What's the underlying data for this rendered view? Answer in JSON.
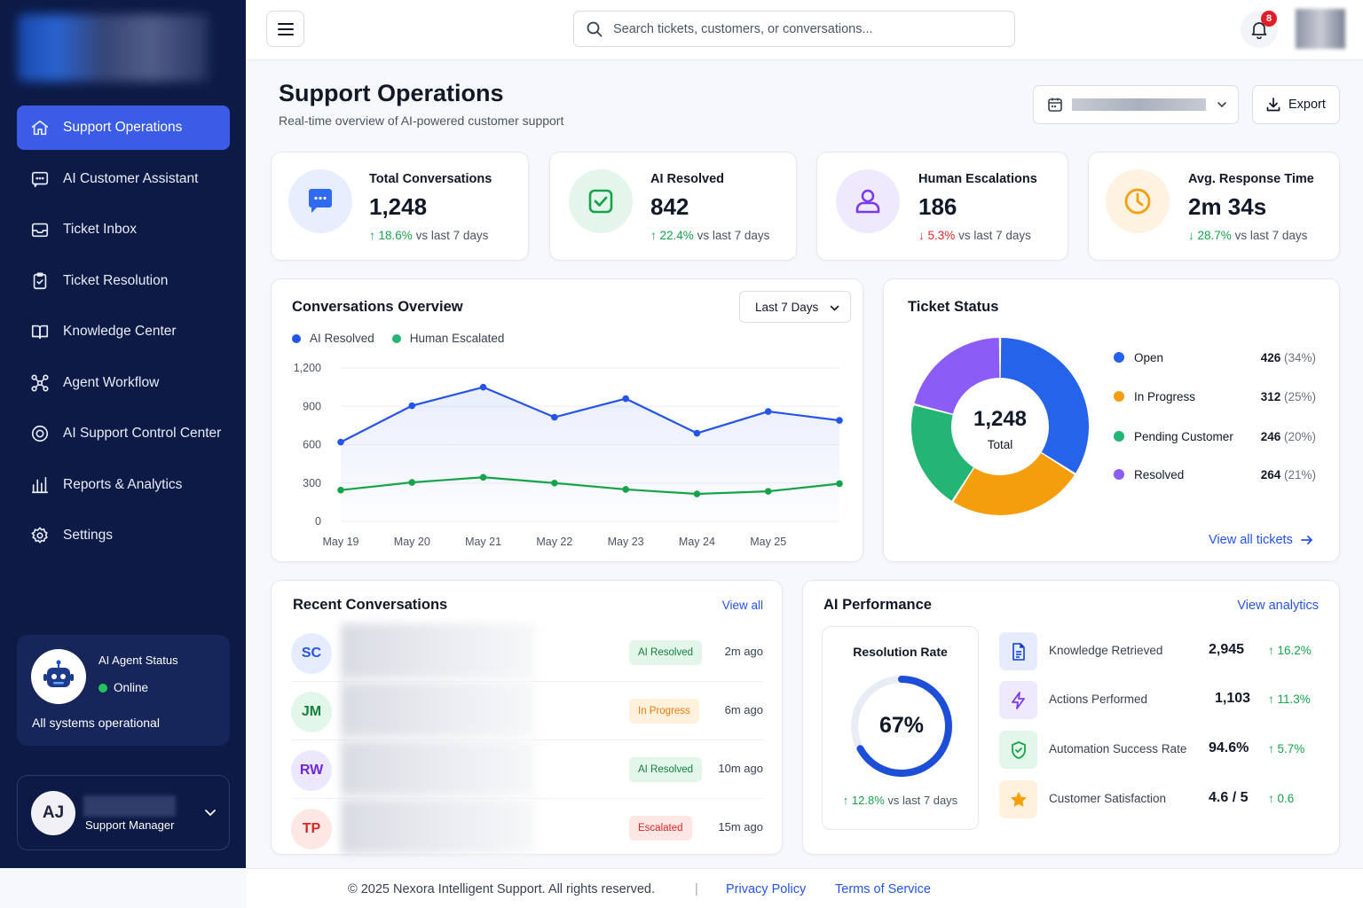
{
  "sidebar": {
    "items": [
      {
        "label": "Support Operations",
        "icon": "home-icon"
      },
      {
        "label": "AI Customer Assistant",
        "icon": "chat-icon"
      },
      {
        "label": "Ticket Inbox",
        "icon": "inbox-icon"
      },
      {
        "label": "Ticket Resolution",
        "icon": "clipboard-check-icon"
      },
      {
        "label": "Knowledge Center",
        "icon": "book-icon"
      },
      {
        "label": "Agent Workflow",
        "icon": "workflow-icon"
      },
      {
        "label": "AI Support Control Center",
        "icon": "target-icon"
      },
      {
        "label": "Reports & Analytics",
        "icon": "bar-chart-icon"
      },
      {
        "label": "Settings",
        "icon": "gear-icon"
      }
    ],
    "agent_status": {
      "title": "AI Agent Status",
      "state": "Online",
      "message": "All systems operational"
    },
    "user": {
      "initials": "AJ",
      "role": "Support Manager"
    }
  },
  "topbar": {
    "search_placeholder": "Search tickets, customers, or conversations...",
    "notification_count": "8"
  },
  "header": {
    "title": "Support Operations",
    "subtitle": "Real-time overview of AI-powered customer support",
    "export_label": "Export"
  },
  "stats": [
    {
      "label": "Total Conversations",
      "value": "1,248",
      "delta": "18.6%",
      "direction": "up",
      "suffix": "vs last 7 days",
      "color": "#2f6bf0"
    },
    {
      "label": "AI Resolved",
      "value": "842",
      "delta": "22.4%",
      "direction": "up",
      "suffix": "vs last 7 days",
      "color": "#16a34a"
    },
    {
      "label": "Human Escalations",
      "value": "186",
      "delta": "5.3%",
      "direction": "down",
      "suffix": "vs last 7 days",
      "color": "#7c3aed"
    },
    {
      "label": "Avg. Response Time",
      "value": "2m 34s",
      "delta": "28.7%",
      "direction": "down",
      "suffix": "vs last 7 days",
      "color": "#f59e0b"
    }
  ],
  "overview": {
    "title": "Conversations Overview",
    "range": "Last 7 Days",
    "chart_data": {
      "type": "line",
      "x": [
        "May 19",
        "May 20",
        "May 21",
        "May 22",
        "May 23",
        "May 24",
        "May 25",
        ""
      ],
      "y_ticks": [
        "0",
        "300",
        "600",
        "900",
        "1,200"
      ],
      "ylim": [
        0,
        1200
      ],
      "series": [
        {
          "name": "AI Resolved",
          "color": "#2554e8",
          "values": [
            620,
            905,
            1050,
            815,
            960,
            690,
            860,
            790
          ]
        },
        {
          "name": "Human Escalated",
          "color": "#16a34a",
          "values": [
            245,
            305,
            345,
            300,
            250,
            215,
            235,
            295
          ]
        }
      ],
      "legend": "top-left",
      "grid": true
    }
  },
  "ticket_status": {
    "title": "Ticket Status",
    "total": "1,248",
    "total_label": "Total",
    "link": "View all tickets",
    "chart_data": {
      "type": "pie",
      "slices": [
        {
          "label": "Open",
          "count": "426",
          "pct": "(34%)",
          "value": 34,
          "color": "#2563eb"
        },
        {
          "label": "In Progress",
          "count": "312",
          "pct": "(25%)",
          "value": 25,
          "color": "#f59e0b"
        },
        {
          "label": "Pending Customer",
          "count": "246",
          "pct": "(20%)",
          "value": 20,
          "color": "#22b573"
        },
        {
          "label": "Resolved",
          "count": "264",
          "pct": "(21%)",
          "value": 21,
          "color": "#8b5cf6"
        }
      ]
    }
  },
  "recent": {
    "title": "Recent Conversations",
    "link": "View all",
    "rows": [
      {
        "initials": "SC",
        "status": "AI Resolved",
        "time": "2m ago",
        "av_bg": "#e6ecfd",
        "av_fg": "#2554e8",
        "st_bg": "#e3f6ea",
        "st_fg": "#15803d"
      },
      {
        "initials": "JM",
        "status": "In Progress",
        "time": "6m ago",
        "av_bg": "#e3f6ea",
        "av_fg": "#15803d",
        "st_bg": "#fff1dc",
        "st_fg": "#ea7c0c"
      },
      {
        "initials": "RW",
        "status": "AI Resolved",
        "time": "10m ago",
        "av_bg": "#ede7fd",
        "av_fg": "#6d28d9",
        "st_bg": "#e3f6ea",
        "st_fg": "#15803d"
      },
      {
        "initials": "TP",
        "status": "Escalated",
        "time": "15m ago",
        "av_bg": "#fde7e4",
        "av_fg": "#dc2626",
        "st_bg": "#fde7e4",
        "st_fg": "#dc2626"
      }
    ]
  },
  "performance": {
    "title": "AI Performance",
    "link": "View analytics",
    "resolution": {
      "label": "Resolution Rate",
      "value": "67%",
      "fraction": 0.67,
      "delta": "12.8%",
      "suffix": "vs last 7 days"
    },
    "metrics": [
      {
        "label": "Knowledge Retrieved",
        "value": "2,945",
        "delta": "16.2%",
        "icon": "document-icon",
        "color": "#2554e8",
        "bg": "#e6ecfd"
      },
      {
        "label": "Actions Performed",
        "value": "1,103",
        "delta": "11.3%",
        "icon": "lightning-icon",
        "color": "#7c3aed",
        "bg": "#efe9fd"
      },
      {
        "label": "Automation Success Rate",
        "value": "94.6%",
        "delta": "5.7%",
        "icon": "shield-check-icon",
        "color": "#16a34a",
        "bg": "#e3f6ea"
      },
      {
        "label": "Customer Satisfaction",
        "value": "4.6 / 5",
        "delta": "0.6",
        "icon": "star-icon",
        "color": "#f59e0b",
        "bg": "#fff1dc"
      }
    ]
  },
  "footer": {
    "copyright": "© 2025 Nexora Intelligent Support. All rights reserved.",
    "separator": "|",
    "privacy": "Privacy Policy",
    "terms": "Terms of Service"
  }
}
